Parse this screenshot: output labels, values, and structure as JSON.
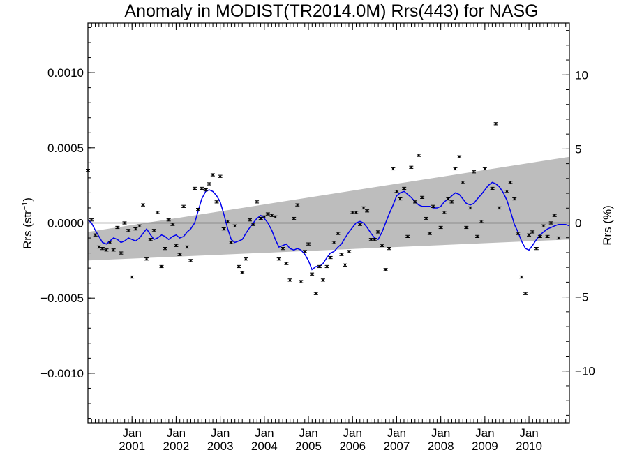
{
  "chart_data": {
    "type": "scatter",
    "title": "Anomaly in MODIST(TR2014.0M) Rrs(443) for NASG",
    "ylabel_left": {
      "base": "Rrs (str",
      "sup": "−1",
      "close": ")"
    },
    "ylabel_right": "Rrs (%)",
    "xlim": [
      2000.0,
      2010.9167
    ],
    "ylim_left": [
      -0.00133,
      0.00133
    ],
    "ylim_right": [
      -13.5,
      13.5
    ],
    "yticks_left": [
      {
        "value": 0.001,
        "label": "0.0010"
      },
      {
        "value": 0.0005,
        "label": "0.0005"
      },
      {
        "value": 0.0,
        "label": "0.0000"
      },
      {
        "value": -0.0005,
        "label": "−0.0005"
      },
      {
        "value": -0.001,
        "label": "−0.0010"
      }
    ],
    "yticks_right": [
      {
        "value": 10,
        "label": "10"
      },
      {
        "value": 5,
        "label": "5"
      },
      {
        "value": 0,
        "label": "0"
      },
      {
        "value": -5,
        "label": "−5"
      },
      {
        "value": -10,
        "label": "−10"
      }
    ],
    "xticks": [
      {
        "value": 2001.0,
        "month": "Jan",
        "year": "2001"
      },
      {
        "value": 2002.0,
        "month": "Jan",
        "year": "2002"
      },
      {
        "value": 2003.0,
        "month": "Jan",
        "year": "2003"
      },
      {
        "value": 2004.0,
        "month": "Jan",
        "year": "2004"
      },
      {
        "value": 2005.0,
        "month": "Jan",
        "year": "2005"
      },
      {
        "value": 2006.0,
        "month": "Jan",
        "year": "2006"
      },
      {
        "value": 2007.0,
        "month": "Jan",
        "year": "2007"
      },
      {
        "value": 2008.0,
        "month": "Jan",
        "year": "2008"
      },
      {
        "value": 2009.0,
        "month": "Jan",
        "year": "2009"
      },
      {
        "value": 2010.0,
        "month": "Jan",
        "year": "2010"
      }
    ],
    "zero_line": 0.0,
    "band": {
      "upper": [
        [
          2000.0,
          -6e-05
        ],
        [
          2010.9167,
          0.00044
        ]
      ],
      "lower": [
        [
          2000.0,
          -0.00025
        ],
        [
          2010.9167,
          -0.00011
        ]
      ]
    },
    "colors": {
      "band": "#bdbdbd",
      "line": "#0000ee",
      "points": "#000000"
    },
    "points": [
      [
        2000.0,
        0.00035
      ],
      [
        2000.08,
        2e-05
      ],
      [
        2000.17,
        -8e-05
      ],
      [
        2000.25,
        -0.00016
      ],
      [
        2000.33,
        -0.00017
      ],
      [
        2000.42,
        -0.00018
      ],
      [
        2000.5,
        -0.00013
      ],
      [
        2000.58,
        -0.00018
      ],
      [
        2000.67,
        -3e-05
      ],
      [
        2000.75,
        -0.0002
      ],
      [
        2000.83,
        0.0
      ],
      [
        2000.92,
        -5e-05
      ],
      [
        2001.0,
        -0.00036
      ],
      [
        2001.08,
        -4e-05
      ],
      [
        2001.17,
        -2e-05
      ],
      [
        2001.25,
        0.00012
      ],
      [
        2001.33,
        -0.00024
      ],
      [
        2001.42,
        -0.00011
      ],
      [
        2001.5,
        -5e-05
      ],
      [
        2001.58,
        7e-05
      ],
      [
        2001.67,
        -0.00029
      ],
      [
        2001.75,
        -0.00017
      ],
      [
        2001.83,
        2e-05
      ],
      [
        2001.92,
        -1e-05
      ],
      [
        2002.0,
        -0.00015
      ],
      [
        2002.08,
        -0.00021
      ],
      [
        2002.17,
        0.00011
      ],
      [
        2002.25,
        -0.00016
      ],
      [
        2002.33,
        -0.00025
      ],
      [
        2002.42,
        0.00023
      ],
      [
        2002.5,
        9e-05
      ],
      [
        2002.58,
        0.00023
      ],
      [
        2002.67,
        0.00022
      ],
      [
        2002.75,
        0.00026
      ],
      [
        2002.83,
        0.00032
      ],
      [
        2002.92,
        0.00014
      ],
      [
        2003.0,
        0.00031
      ],
      [
        2003.08,
        -4e-05
      ],
      [
        2003.17,
        1e-05
      ],
      [
        2003.25,
        -0.00013
      ],
      [
        2003.33,
        -2e-05
      ],
      [
        2003.42,
        -0.00029
      ],
      [
        2003.5,
        -0.00033
      ],
      [
        2003.58,
        -0.00024
      ],
      [
        2003.67,
        2e-05
      ],
      [
        2003.75,
        -1e-05
      ],
      [
        2003.83,
        0.00014
      ],
      [
        2003.92,
        3e-05
      ],
      [
        2004.0,
        4e-05
      ],
      [
        2004.08,
        6e-05
      ],
      [
        2004.17,
        5e-05
      ],
      [
        2004.25,
        4e-05
      ],
      [
        2004.33,
        -0.00024
      ],
      [
        2004.42,
        -0.00017
      ],
      [
        2004.5,
        -0.00027
      ],
      [
        2004.58,
        -0.00038
      ],
      [
        2004.67,
        3e-05
      ],
      [
        2004.75,
        0.00012
      ],
      [
        2004.83,
        -0.00039
      ],
      [
        2004.92,
        -0.00019
      ],
      [
        2005.0,
        -0.00014
      ],
      [
        2005.08,
        -0.00034
      ],
      [
        2005.17,
        -0.00047
      ],
      [
        2005.25,
        -0.00029
      ],
      [
        2005.33,
        -0.00038
      ],
      [
        2005.42,
        -0.00029
      ],
      [
        2005.5,
        -0.00023
      ],
      [
        2005.58,
        -0.00013
      ],
      [
        2005.67,
        -7e-05
      ],
      [
        2005.75,
        -0.00021
      ],
      [
        2005.83,
        -0.00028
      ],
      [
        2005.92,
        -0.00019
      ],
      [
        2006.0,
        7e-05
      ],
      [
        2006.08,
        7e-05
      ],
      [
        2006.17,
        -1e-05
      ],
      [
        2006.25,
        0.0001
      ],
      [
        2006.33,
        8e-05
      ],
      [
        2006.42,
        -0.00011
      ],
      [
        2006.5,
        -0.00011
      ],
      [
        2006.58,
        -6e-05
      ],
      [
        2006.67,
        -0.00015
      ],
      [
        2006.75,
        -0.00031
      ],
      [
        2006.83,
        -0.00017
      ],
      [
        2006.92,
        0.00036
      ],
      [
        2007.0,
        0.00021
      ],
      [
        2007.08,
        0.00016
      ],
      [
        2007.17,
        0.00023
      ],
      [
        2007.25,
        -9e-05
      ],
      [
        2007.33,
        0.00037
      ],
      [
        2007.42,
        0.00014
      ],
      [
        2007.5,
        0.00045
      ],
      [
        2007.58,
        0.00017
      ],
      [
        2007.67,
        3e-05
      ],
      [
        2007.75,
        -7e-05
      ],
      [
        2007.83,
        0.00011
      ],
      [
        2008.0,
        -3e-05
      ],
      [
        2008.08,
        7e-05
      ],
      [
        2008.17,
        0.00016
      ],
      [
        2008.25,
        0.00014
      ],
      [
        2008.33,
        0.00036
      ],
      [
        2008.42,
        0.00044
      ],
      [
        2008.5,
        0.00027
      ],
      [
        2008.58,
        -3e-05
      ],
      [
        2008.67,
        0.0001
      ],
      [
        2008.75,
        0.00034
      ],
      [
        2008.83,
        -9e-05
      ],
      [
        2008.92,
        1e-05
      ],
      [
        2009.0,
        0.00036
      ],
      [
        2009.17,
        0.00023
      ],
      [
        2009.25,
        0.00066
      ],
      [
        2009.33,
        0.0001
      ],
      [
        2009.5,
        0.00021
      ],
      [
        2009.58,
        0.00027
      ],
      [
        2009.67,
        0.00016
      ],
      [
        2009.75,
        -7e-05
      ],
      [
        2009.83,
        -0.00036
      ],
      [
        2009.92,
        -0.00047
      ],
      [
        2010.0,
        -8e-05
      ],
      [
        2010.08,
        -6e-05
      ],
      [
        2010.17,
        -0.00017
      ],
      [
        2010.25,
        -9e-05
      ],
      [
        2010.33,
        -2e-05
      ],
      [
        2010.42,
        -9e-05
      ],
      [
        2010.5,
        0.0
      ],
      [
        2010.58,
        5e-05
      ],
      [
        2010.67,
        -0.0001
      ]
    ],
    "smooth": [
      [
        2000.0,
        2e-05
      ],
      [
        2000.08,
        0.0
      ],
      [
        2000.17,
        -5e-05
      ],
      [
        2000.25,
        -9e-05
      ],
      [
        2000.33,
        -0.00013
      ],
      [
        2000.42,
        -0.00014
      ],
      [
        2000.5,
        -0.00012
      ],
      [
        2000.58,
        -0.0001
      ],
      [
        2000.67,
        -0.00011
      ],
      [
        2000.75,
        -0.00013
      ],
      [
        2000.83,
        -0.00012
      ],
      [
        2000.92,
        -0.0001
      ],
      [
        2001.0,
        -0.00011
      ],
      [
        2001.08,
        -0.00012
      ],
      [
        2001.17,
        -0.0001
      ],
      [
        2001.25,
        -7e-05
      ],
      [
        2001.33,
        -4e-05
      ],
      [
        2001.42,
        -8e-05
      ],
      [
        2001.5,
        -0.00011
      ],
      [
        2001.58,
        -0.0001
      ],
      [
        2001.67,
        -8e-05
      ],
      [
        2001.75,
        -9e-05
      ],
      [
        2001.83,
        -0.00011
      ],
      [
        2001.92,
        -9e-05
      ],
      [
        2002.0,
        -8e-05
      ],
      [
        2002.08,
        -0.0001
      ],
      [
        2002.17,
        -9e-05
      ],
      [
        2002.25,
        -6e-05
      ],
      [
        2002.33,
        -4e-05
      ],
      [
        2002.42,
        0.0
      ],
      [
        2002.5,
        8e-05
      ],
      [
        2002.58,
        0.00016
      ],
      [
        2002.67,
        0.00021
      ],
      [
        2002.75,
        0.00022
      ],
      [
        2002.83,
        0.00021
      ],
      [
        2002.92,
        0.00018
      ],
      [
        2003.0,
        0.00014
      ],
      [
        2003.08,
        6e-05
      ],
      [
        2003.17,
        -4e-05
      ],
      [
        2003.25,
        -0.00011
      ],
      [
        2003.33,
        -0.00013
      ],
      [
        2003.42,
        -0.00012
      ],
      [
        2003.5,
        -0.00011
      ],
      [
        2003.58,
        -7e-05
      ],
      [
        2003.67,
        -3e-05
      ],
      [
        2003.75,
        0.0
      ],
      [
        2003.83,
        3e-05
      ],
      [
        2003.92,
        5e-05
      ],
      [
        2004.0,
        3e-05
      ],
      [
        2004.08,
        0.0
      ],
      [
        2004.17,
        -5e-05
      ],
      [
        2004.25,
        -0.00011
      ],
      [
        2004.33,
        -0.00016
      ],
      [
        2004.42,
        -0.00015
      ],
      [
        2004.5,
        -0.00014
      ],
      [
        2004.58,
        -0.00017
      ],
      [
        2004.67,
        -0.00018
      ],
      [
        2004.75,
        -0.00017
      ],
      [
        2004.83,
        -0.00018
      ],
      [
        2004.92,
        -0.00021
      ],
      [
        2005.0,
        -0.00025
      ],
      [
        2005.08,
        -0.00031
      ],
      [
        2005.17,
        -0.00029
      ],
      [
        2005.25,
        -0.00029
      ],
      [
        2005.33,
        -0.00027
      ],
      [
        2005.42,
        -0.00023
      ],
      [
        2005.5,
        -0.0002
      ],
      [
        2005.58,
        -0.00019
      ],
      [
        2005.67,
        -0.00016
      ],
      [
        2005.75,
        -0.00014
      ],
      [
        2005.83,
        -0.0001
      ],
      [
        2005.92,
        -6e-05
      ],
      [
        2006.0,
        -3e-05
      ],
      [
        2006.08,
        0.0
      ],
      [
        2006.17,
        1e-05
      ],
      [
        2006.25,
        0.0
      ],
      [
        2006.33,
        -3e-05
      ],
      [
        2006.42,
        -7e-05
      ],
      [
        2006.5,
        -0.0001
      ],
      [
        2006.58,
        -0.00011
      ],
      [
        2006.67,
        -6e-05
      ],
      [
        2006.75,
        0.0
      ],
      [
        2006.83,
        6e-05
      ],
      [
        2006.92,
        0.00012
      ],
      [
        2007.0,
        0.00018
      ],
      [
        2007.08,
        0.0002
      ],
      [
        2007.17,
        0.00021
      ],
      [
        2007.25,
        0.00019
      ],
      [
        2007.33,
        0.00017
      ],
      [
        2007.42,
        0.00014
      ],
      [
        2007.5,
        0.00012
      ],
      [
        2007.58,
        0.00011
      ],
      [
        2007.67,
        0.00011
      ],
      [
        2007.75,
        0.00011
      ],
      [
        2007.83,
        0.0001
      ],
      [
        2007.92,
        0.0001
      ],
      [
        2008.0,
        0.00011
      ],
      [
        2008.08,
        0.00014
      ],
      [
        2008.17,
        0.00016
      ],
      [
        2008.25,
        0.00018
      ],
      [
        2008.33,
        0.0002
      ],
      [
        2008.42,
        0.00019
      ],
      [
        2008.5,
        0.00016
      ],
      [
        2008.58,
        0.00013
      ],
      [
        2008.67,
        0.00012
      ],
      [
        2008.75,
        0.00013
      ],
      [
        2008.83,
        0.00016
      ],
      [
        2008.92,
        0.00019
      ],
      [
        2009.0,
        0.00022
      ],
      [
        2009.08,
        0.00025
      ],
      [
        2009.17,
        0.00027
      ],
      [
        2009.25,
        0.00026
      ],
      [
        2009.33,
        0.00024
      ],
      [
        2009.42,
        0.0002
      ],
      [
        2009.5,
        0.00015
      ],
      [
        2009.58,
        8e-05
      ],
      [
        2009.67,
        -1e-05
      ],
      [
        2009.75,
        -6e-05
      ],
      [
        2009.83,
        -0.00012
      ],
      [
        2009.92,
        -0.00017
      ],
      [
        2010.0,
        -0.00018
      ],
      [
        2010.08,
        -0.00015
      ],
      [
        2010.17,
        -0.00011
      ],
      [
        2010.25,
        -8e-05
      ],
      [
        2010.33,
        -6e-05
      ],
      [
        2010.42,
        -4e-05
      ],
      [
        2010.5,
        -3e-05
      ],
      [
        2010.58,
        -2e-05
      ],
      [
        2010.67,
        -1e-05
      ],
      [
        2010.75,
        -1e-05
      ],
      [
        2010.83,
        -1e-05
      ],
      [
        2010.92,
        -2e-05
      ]
    ]
  }
}
